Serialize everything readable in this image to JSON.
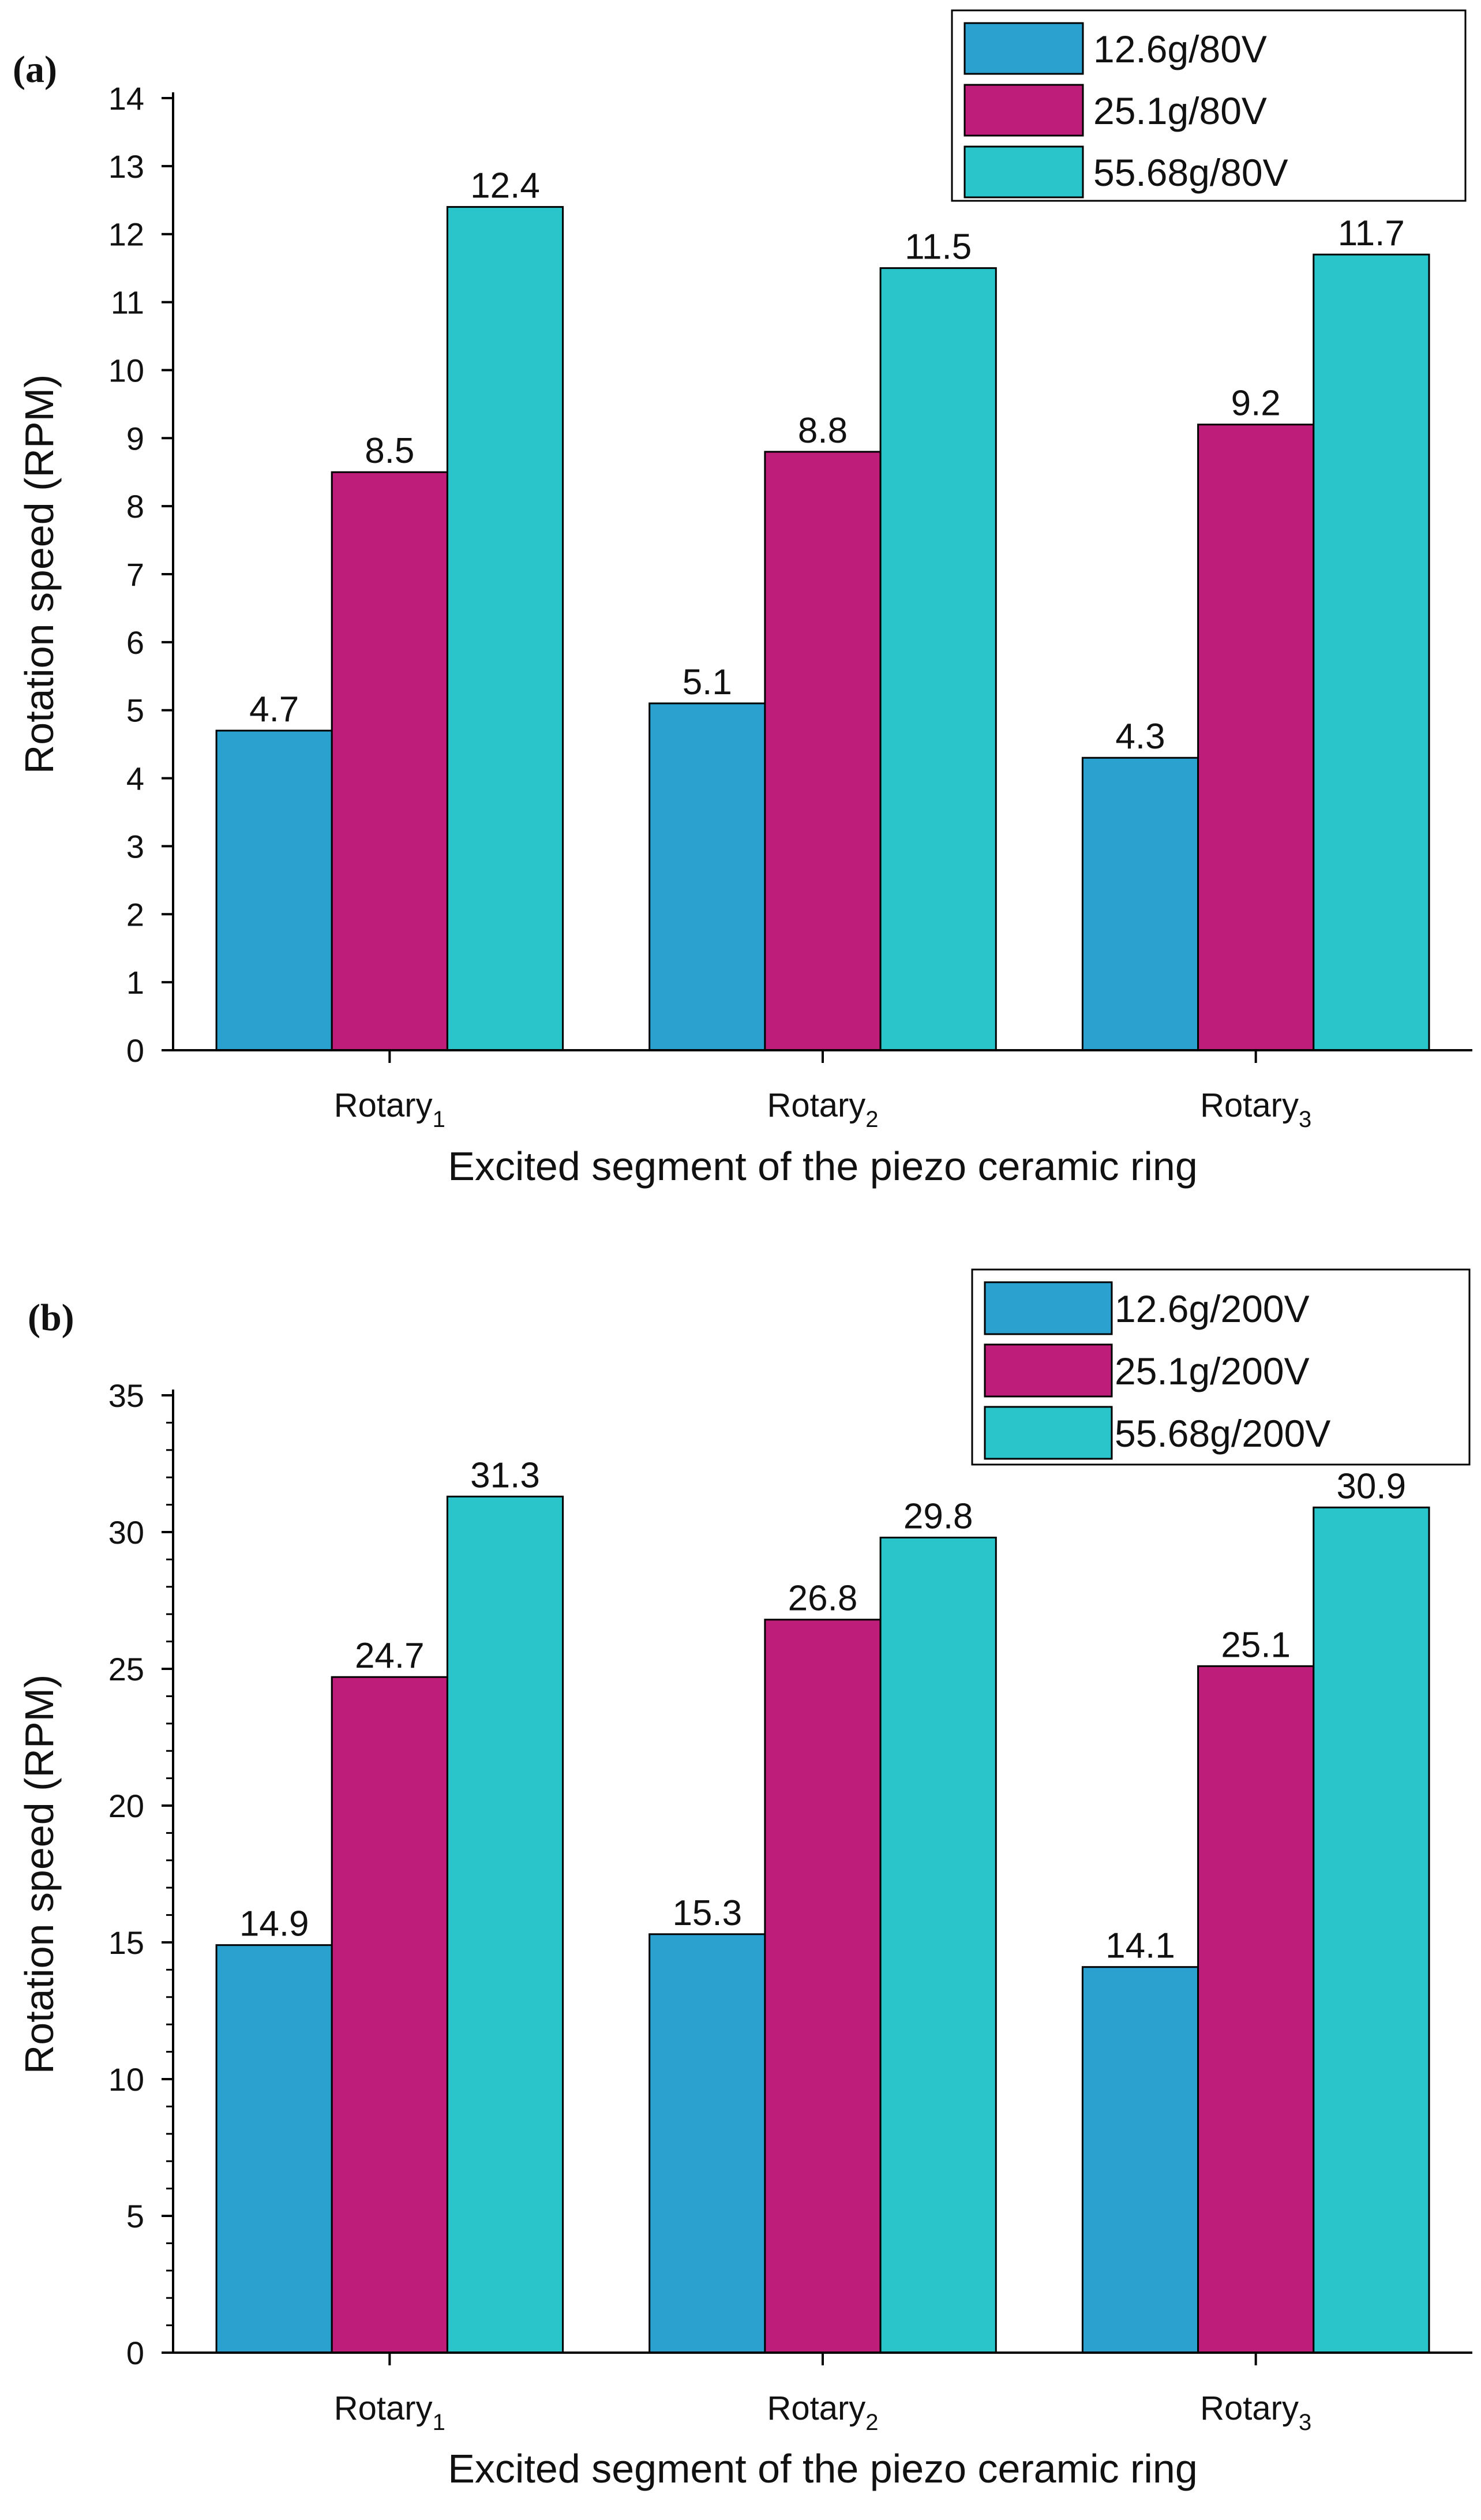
{
  "figure": {
    "background": "#ffffff",
    "axis_color": "#000000"
  },
  "chart_data": [
    {
      "type": "bar",
      "panel_label": "(a)",
      "xlabel": "Excited segment of the piezo ceramic ring",
      "ylabel": "Rotation speed (RPM)",
      "categories": [
        {
          "base": "Rotary",
          "sub": "1"
        },
        {
          "base": "Rotary",
          "sub": "2"
        },
        {
          "base": "Rotary",
          "sub": "3"
        }
      ],
      "series": [
        {
          "name": "12.6g/80V",
          "color": "#2BA1CF",
          "values": [
            4.7,
            5.1,
            4.3
          ],
          "labels": [
            "4.7",
            "5.1",
            "4.3"
          ]
        },
        {
          "name": "25.1g/80V",
          "color": "#BE1E79",
          "values": [
            8.5,
            8.8,
            9.2
          ],
          "labels": [
            "8.5",
            "8.8",
            "9.2"
          ]
        },
        {
          "name": "55.68g/80V",
          "color": "#29C5CB",
          "values": [
            12.4,
            11.5,
            11.7
          ],
          "labels": [
            "12.4",
            "11.5",
            "11.7"
          ]
        }
      ],
      "ylim": [
        0,
        14
      ],
      "yticks": [
        "0",
        "1",
        "2",
        "3",
        "4",
        "5",
        "6",
        "7",
        "8",
        "9",
        "10",
        "11",
        "12",
        "13",
        "14"
      ],
      "ytick_values": [
        0,
        1,
        2,
        3,
        4,
        5,
        6,
        7,
        8,
        9,
        10,
        11,
        12,
        13,
        14
      ],
      "minor_ticks": false,
      "legend": "top-right",
      "grid": false
    },
    {
      "type": "bar",
      "panel_label": "(b)",
      "xlabel": "Excited segment of the piezo ceramic ring",
      "ylabel": "Rotation speed (RPM)",
      "categories": [
        {
          "base": "Rotary",
          "sub": "1"
        },
        {
          "base": "Rotary",
          "sub": "2"
        },
        {
          "base": "Rotary",
          "sub": "3"
        }
      ],
      "series": [
        {
          "name": "12.6g/200V",
          "color": "#2BA1CF",
          "values": [
            14.9,
            15.3,
            14.1
          ],
          "labels": [
            "14.9",
            "15.3",
            "14.1"
          ]
        },
        {
          "name": "25.1g/200V",
          "color": "#BE1E79",
          "values": [
            24.7,
            26.8,
            25.1
          ],
          "labels": [
            "24.7",
            "26.8",
            "25.1"
          ]
        },
        {
          "name": "55.68g/200V",
          "color": "#29C5CB",
          "values": [
            31.3,
            29.8,
            30.9
          ],
          "labels": [
            "31.3",
            "29.8",
            "30.9"
          ]
        }
      ],
      "ylim": [
        0,
        35
      ],
      "yticks": [
        "0",
        "5",
        "10",
        "15",
        "20",
        "25",
        "30",
        "35"
      ],
      "ytick_values": [
        0,
        5,
        10,
        15,
        20,
        25,
        30,
        35
      ],
      "minor_ticks": true,
      "legend": "top-right",
      "grid": false
    }
  ]
}
